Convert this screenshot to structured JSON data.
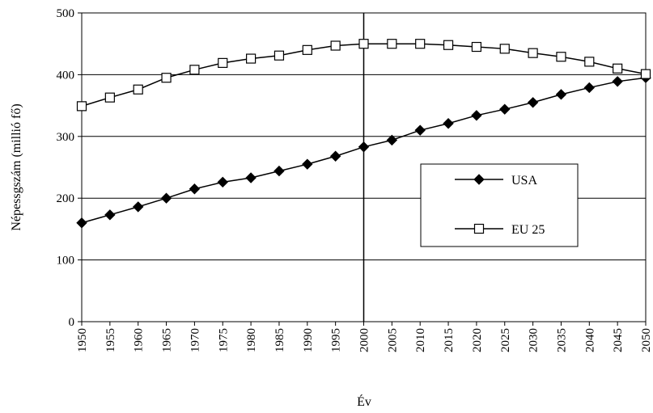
{
  "chart_data": {
    "type": "line",
    "title": "",
    "xlabel": "Év",
    "ylabel": "Népessgszám (millió fő)",
    "x": [
      1950,
      1955,
      1960,
      1965,
      1970,
      1975,
      1980,
      1985,
      1990,
      1995,
      2000,
      2005,
      2010,
      2015,
      2020,
      2025,
      2030,
      2035,
      2040,
      2045,
      2050
    ],
    "ylim": [
      0,
      500
    ],
    "yticks": [
      0,
      100,
      200,
      300,
      400,
      500
    ],
    "grid": "horizontal",
    "legend_position": "right",
    "reference_line_x": 2000,
    "series": [
      {
        "name": "USA",
        "marker": "filled-diamond",
        "color": "#000000",
        "values": [
          160,
          173,
          186,
          200,
          215,
          226,
          233,
          244,
          255,
          268,
          283,
          294,
          310,
          321,
          334,
          344,
          355,
          368,
          379,
          389,
          395
        ]
      },
      {
        "name": "EU 25",
        "marker": "open-square",
        "color": "#000000",
        "values": [
          349,
          363,
          376,
          395,
          408,
          419,
          426,
          431,
          440,
          447,
          450,
          450,
          450,
          448,
          445,
          442,
          435,
          429,
          421,
          410,
          401
        ]
      }
    ]
  }
}
